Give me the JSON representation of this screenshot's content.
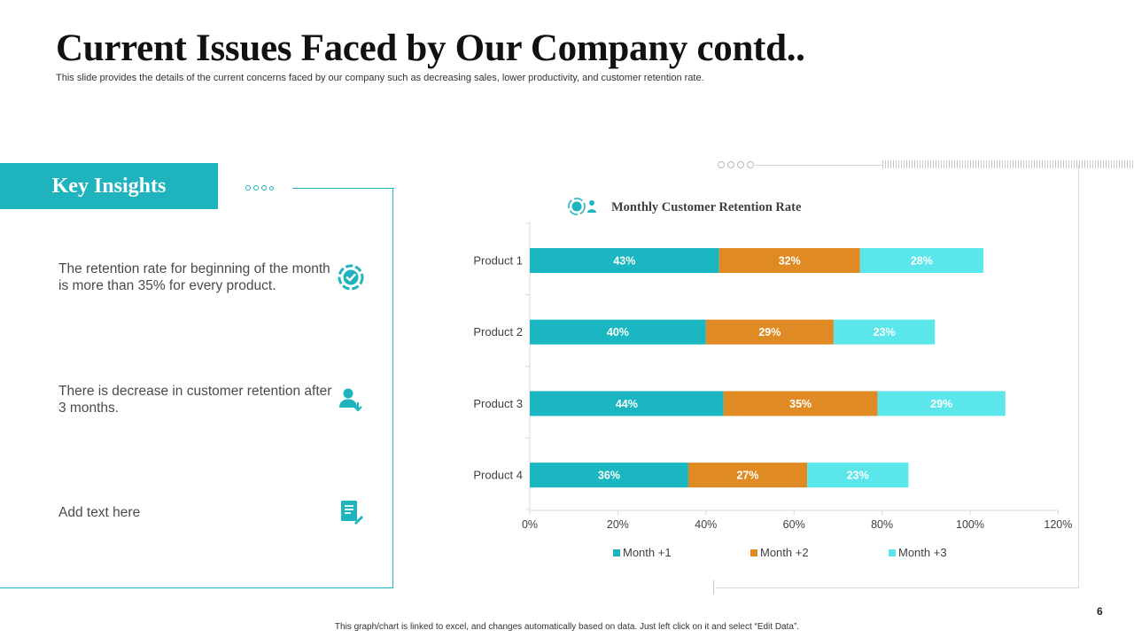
{
  "slide": {
    "title": "Current Issues Faced by Our Company contd..",
    "subtitle": "This slide provides the details of the current concerns faced by our company such as decreasing sales, lower productivity, and customer retention rate.",
    "footer": "This graph/chart is linked to excel, and changes automatically based on data. Just left click on it and select “Edit Data”.",
    "page_number": "6"
  },
  "insights": {
    "heading": "Key Insights",
    "items": [
      {
        "text": "The retention rate for beginning of the month is more than 35% for every product.",
        "icon": "gear-check-icon"
      },
      {
        "text": "There is decrease in customer retention after 3 months.",
        "icon": "user-down-icon"
      },
      {
        "text": "Add text here",
        "icon": "document-edit-icon"
      }
    ]
  },
  "colors": {
    "accent": "#1fb3bd",
    "month1": "#1ab6c1",
    "month2": "#df8a22",
    "month3": "#5ae6ea"
  },
  "chart_data": {
    "type": "bar",
    "orientation": "horizontal",
    "stacked": true,
    "title": "Monthly Customer Retention Rate",
    "categories": [
      "Product 1",
      "Product 2",
      "Product 3",
      "Product 4"
    ],
    "series": [
      {
        "name": "Month +1",
        "values": [
          43,
          40,
          44,
          36
        ],
        "labels": [
          "43%",
          "40%",
          "44%",
          "36%"
        ]
      },
      {
        "name": "Month +2",
        "values": [
          32,
          29,
          35,
          27
        ],
        "labels": [
          "32%",
          "29%",
          "35%",
          "27%"
        ]
      },
      {
        "name": "Month +3",
        "values": [
          28,
          23,
          29,
          23
        ],
        "labels": [
          "28%",
          "23%",
          "29%",
          "23%"
        ]
      }
    ],
    "xlim": [
      0,
      120
    ],
    "x_ticks": [
      "0%",
      "20%",
      "40%",
      "60%",
      "80%",
      "100%",
      "120%"
    ],
    "xlabel": "",
    "ylabel": "",
    "legend": "bottom",
    "grid": false
  }
}
